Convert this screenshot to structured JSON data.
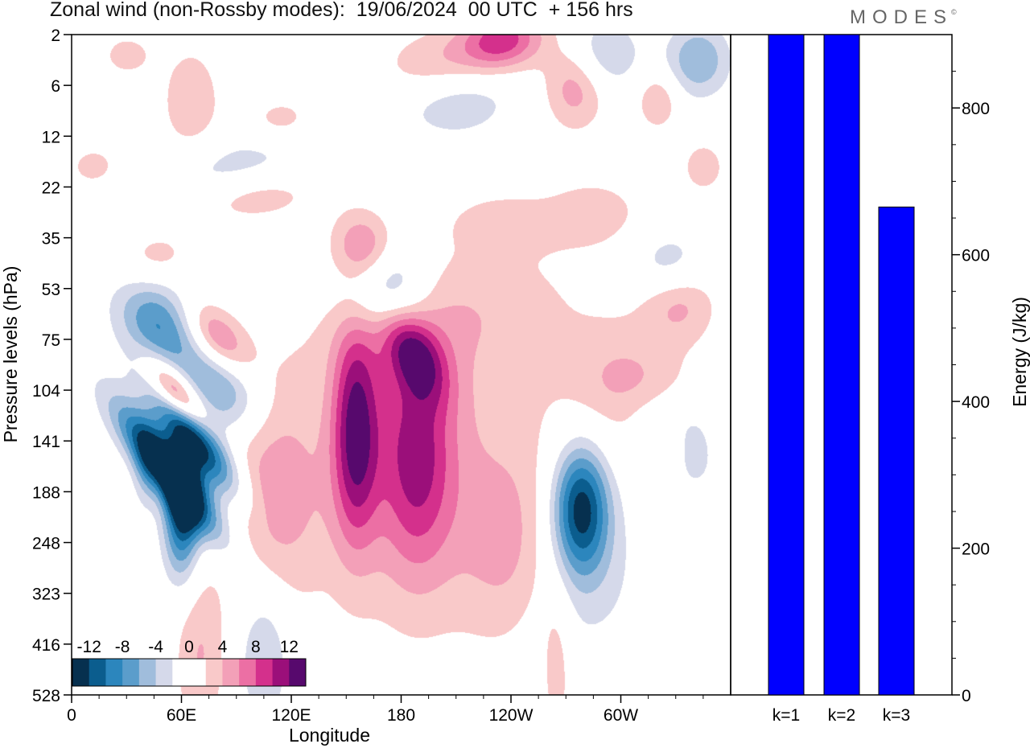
{
  "header": {
    "title": "Zonal wind (non-Rossby modes):  19/06/2024  00 UTC  + 156 hrs",
    "logo_text": "MODES",
    "logo_mark": "©"
  },
  "colors": {
    "palette": [
      "#06304f",
      "#0b5d8e",
      "#2c86bd",
      "#5b9dcb",
      "#a0bddc",
      "#d5d9ea",
      "#ffffff",
      "#ffffff",
      "#f9c9c9",
      "#f3a0b8",
      "#ec6fa4",
      "#d4308c",
      "#9b0f7a",
      "#57096d"
    ],
    "bar_fill": "#0000ff",
    "frame": "#000000"
  },
  "chart_data": [
    {
      "type": "heatmap",
      "title": "Zonal wind (non-Rossby modes):  19/06/2024  00 UTC  + 156 hrs",
      "xlabel": "Longitude",
      "ylabel": "Pressure levels (hPa)",
      "x_ticks": [
        "0",
        "60E",
        "120E",
        "180",
        "120W",
        "60W"
      ],
      "x_tick_values": [
        0,
        60,
        120,
        180,
        240,
        300
      ],
      "xlim": [
        0,
        360
      ],
      "y_ticks": [
        "2",
        "6",
        "12",
        "22",
        "35",
        "53",
        "75",
        "104",
        "141",
        "188",
        "248",
        "323",
        "416",
        "528"
      ],
      "colorbar_labels": [
        "-12",
        "-8",
        "-4",
        "0",
        "4",
        "8",
        "12"
      ],
      "colorbar_levels": [
        -14,
        -12,
        -10,
        -8,
        -6,
        -4,
        -2,
        0,
        2,
        4,
        6,
        8,
        10,
        12,
        14
      ],
      "blobs": [
        {
          "lon": 53,
          "lev": 8.6,
          "sx": 8,
          "sy": 1.1,
          "amp": -16,
          "rot": -38
        },
        {
          "lon": 68,
          "lev": 8.0,
          "sx": 8,
          "sy": 0.9,
          "amp": -13,
          "rot": -38
        },
        {
          "lon": 60,
          "lev": 9.4,
          "sx": 7,
          "sy": 0.9,
          "amp": -12,
          "rot": 0
        },
        {
          "lon": 82,
          "lev": 6.9,
          "sx": 14,
          "sy": 0.7,
          "amp": -7,
          "rot": -30
        },
        {
          "lon": 47,
          "lev": 5.7,
          "sx": 14,
          "sy": 0.7,
          "amp": -8,
          "rot": -35
        },
        {
          "lon": 58,
          "lev": 7.1,
          "sx": 6,
          "sy": 0.6,
          "amp": 11,
          "rot": -40
        },
        {
          "lon": 80,
          "lev": 6.0,
          "sx": 9,
          "sy": 0.6,
          "amp": 8,
          "rot": -40
        },
        {
          "lon": 155,
          "lev": 7.8,
          "sx": 9,
          "sy": 1.5,
          "amp": 11,
          "rot": 0
        },
        {
          "lon": 188,
          "lev": 8.2,
          "sx": 14,
          "sy": 1.6,
          "amp": 8,
          "rot": 0
        },
        {
          "lon": 185,
          "lev": 6.2,
          "sx": 10,
          "sy": 0.7,
          "amp": 8,
          "rot": -30
        },
        {
          "lon": 200,
          "lev": 8.8,
          "sx": 55,
          "sy": 2.2,
          "amp": 3.8,
          "rot": 0
        },
        {
          "lon": 110,
          "lev": 9.0,
          "sx": 18,
          "sy": 1.5,
          "amp": 4.5,
          "rot": 0
        },
        {
          "lon": 172,
          "lev": 5.0,
          "sx": 16,
          "sy": 0.7,
          "amp": -8,
          "rot": -15
        },
        {
          "lon": 160,
          "lev": 4.2,
          "sx": 12,
          "sy": 0.5,
          "amp": 7,
          "rot": -15
        },
        {
          "lon": 205,
          "lev": 5.5,
          "sx": 50,
          "sy": 0.9,
          "amp": 3,
          "rot": -10
        },
        {
          "lon": 278,
          "lev": 9.3,
          "sx": 11,
          "sy": 0.9,
          "amp": -13,
          "rot": 0
        },
        {
          "lon": 280,
          "lev": 10.6,
          "sx": 25,
          "sy": 1.3,
          "amp": -3,
          "rot": 0
        },
        {
          "lon": 305,
          "lev": 7.0,
          "sx": 22,
          "sy": 0.9,
          "amp": 4.5,
          "rot": -30
        },
        {
          "lon": 326,
          "lev": 4.6,
          "sx": 14,
          "sy": 0.5,
          "amp": -6,
          "rot": -20
        },
        {
          "lon": 330,
          "lev": 5.1,
          "sx": 14,
          "sy": 0.6,
          "amp": 6,
          "rot": -20
        },
        {
          "lon": 235,
          "lev": 0.1,
          "sx": 16,
          "sy": 0.4,
          "amp": 9,
          "rot": -10
        },
        {
          "lon": 200,
          "lev": 0.6,
          "sx": 22,
          "sy": 0.5,
          "amp": 4,
          "rot": -5
        },
        {
          "lon": 210,
          "lev": 1.3,
          "sx": 22,
          "sy": 0.5,
          "amp": -4,
          "rot": -5
        },
        {
          "lon": 342,
          "lev": 0.5,
          "sx": 12,
          "sy": 0.5,
          "amp": -6,
          "rot": 0
        },
        {
          "lon": 290,
          "lev": 0.4,
          "sx": 14,
          "sy": 0.5,
          "amp": -4.5,
          "rot": 0
        },
        {
          "lon": 275,
          "lev": 1.0,
          "sx": 12,
          "sy": 0.6,
          "amp": 5.5,
          "rot": 0
        },
        {
          "lon": 320,
          "lev": 1.3,
          "sx": 8,
          "sy": 0.4,
          "amp": 4,
          "rot": 0
        },
        {
          "lon": 65,
          "lev": 1.3,
          "sx": 12,
          "sy": 0.8,
          "amp": 3.5,
          "rot": 0
        },
        {
          "lon": 115,
          "lev": 1.7,
          "sx": 14,
          "sy": 0.35,
          "amp": 3,
          "rot": 0
        },
        {
          "lon": 85,
          "lev": 2.6,
          "sx": 40,
          "sy": 0.4,
          "amp": -3,
          "rot": -15
        },
        {
          "lon": 100,
          "lev": 3.2,
          "sx": 25,
          "sy": 0.35,
          "amp": 3,
          "rot": -5
        },
        {
          "lon": 45,
          "lev": 4.4,
          "sx": 15,
          "sy": 0.4,
          "amp": 3,
          "rot": -10
        },
        {
          "lon": 285,
          "lev": 3.5,
          "sx": 20,
          "sy": 0.5,
          "amp": 3,
          "rot": 0
        },
        {
          "lon": 235,
          "lev": 3.7,
          "sx": 20,
          "sy": 0.4,
          "amp": 3,
          "rot": 0
        },
        {
          "lon": 70,
          "lev": 12.2,
          "sx": 10,
          "sy": 1.2,
          "amp": 4,
          "rot": 0
        },
        {
          "lon": 105,
          "lev": 12.2,
          "sx": 10,
          "sy": 1.0,
          "amp": -4.5,
          "rot": 0
        },
        {
          "lon": 265,
          "lev": 12.4,
          "sx": 6,
          "sy": 1.2,
          "amp": 3,
          "rot": 0
        },
        {
          "lon": 240,
          "lev": 10.2,
          "sx": 18,
          "sy": 1.2,
          "amp": 3,
          "rot": 0
        },
        {
          "lon": 40,
          "lev": 8.6,
          "sx": 5,
          "sy": 0.6,
          "amp": -3,
          "rot": 0
        },
        {
          "lon": 320,
          "lev": 7.5,
          "sx": 18,
          "sy": 0.4,
          "amp": -3,
          "rot": 0
        },
        {
          "lon": 340,
          "lev": 8.3,
          "sx": 10,
          "sy": 0.6,
          "amp": -3,
          "rot": 0
        },
        {
          "lon": 12,
          "lev": 2.6,
          "sx": 10,
          "sy": 0.3,
          "amp": 3,
          "rot": 0
        },
        {
          "lon": 30,
          "lev": 0.4,
          "sx": 10,
          "sy": 0.3,
          "amp": 3,
          "rot": 0
        },
        {
          "lon": 345,
          "lev": 2.6,
          "sx": 8,
          "sy": 0.35,
          "amp": 3.5,
          "rot": 0
        }
      ]
    },
    {
      "type": "bar",
      "categories": [
        "k=1",
        "k=2",
        "k=3"
      ],
      "values": [
        900,
        900,
        665
      ],
      "ylabel": "Energy (J/kg)",
      "ylim": [
        0,
        900
      ],
      "y_ticks": [
        0,
        200,
        400,
        600,
        800
      ]
    }
  ]
}
